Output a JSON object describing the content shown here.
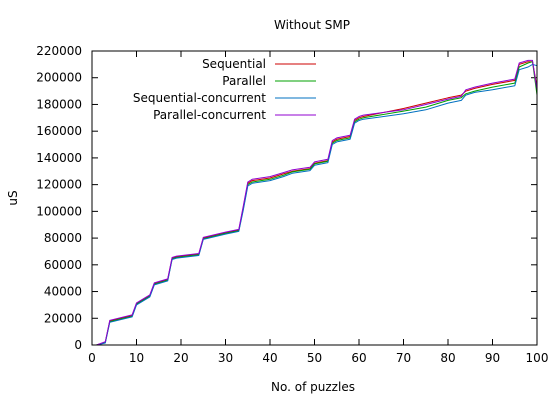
{
  "chart_data": {
    "type": "line",
    "title": "Without SMP",
    "xlabel": "No. of puzzles",
    "ylabel": "uS",
    "xlim": [
      0,
      100
    ],
    "ylim": [
      0,
      220000
    ],
    "xticks": [
      0,
      10,
      20,
      30,
      40,
      50,
      60,
      70,
      80,
      90,
      100
    ],
    "yticks": [
      0,
      20000,
      40000,
      60000,
      80000,
      100000,
      120000,
      140000,
      160000,
      180000,
      200000,
      220000
    ],
    "grid": false,
    "legend": "top-left",
    "series": [
      {
        "name": "Sequential",
        "color": "#cc0000",
        "x": [
          1,
          3,
          4,
          9,
          10,
          12,
          13,
          14,
          17,
          18,
          19,
          24,
          25,
          30,
          33,
          34,
          35,
          36,
          40,
          43,
          45,
          49,
          50,
          53,
          54,
          55,
          58,
          59,
          60,
          61,
          70,
          75,
          80,
          83,
          84,
          86,
          90,
          95,
          96,
          98,
          99,
          100
        ],
        "y": [
          0,
          2000,
          18000,
          22000,
          31000,
          35000,
          37000,
          46000,
          49000,
          65000,
          66000,
          68000,
          80000,
          84000,
          86000,
          103000,
          121000,
          123000,
          125000,
          128000,
          130000,
          132000,
          136000,
          138000,
          152000,
          154000,
          156000,
          168000,
          170000,
          171000,
          177000,
          181000,
          185000,
          187000,
          190000,
          192000,
          195000,
          198000,
          210000,
          212000,
          212000,
          193000
        ]
      },
      {
        "name": "Parallel",
        "color": "#00a000",
        "x": [
          1,
          3,
          4,
          9,
          10,
          12,
          13,
          14,
          17,
          18,
          19,
          24,
          25,
          30,
          33,
          34,
          35,
          36,
          40,
          43,
          45,
          49,
          50,
          53,
          54,
          55,
          58,
          59,
          60,
          61,
          70,
          75,
          80,
          83,
          84,
          86,
          90,
          95,
          96,
          98,
          99,
          100
        ],
        "y": [
          0,
          2000,
          17500,
          21500,
          30500,
          34500,
          36500,
          45500,
          48500,
          64500,
          65500,
          67500,
          79500,
          83500,
          85500,
          102000,
          120000,
          122000,
          124000,
          127000,
          129500,
          131500,
          135500,
          137500,
          151000,
          153000,
          155000,
          167000,
          169000,
          170000,
          175000,
          178000,
          183000,
          185000,
          188000,
          190000,
          193000,
          196000,
          208000,
          211000,
          212000,
          187000
        ]
      },
      {
        "name": "Sequential-concurrent",
        "color": "#0070c0",
        "x": [
          1,
          3,
          4,
          9,
          10,
          12,
          13,
          14,
          17,
          18,
          19,
          24,
          25,
          30,
          33,
          34,
          35,
          36,
          40,
          43,
          45,
          49,
          50,
          53,
          54,
          55,
          58,
          59,
          60,
          61,
          70,
          75,
          80,
          83,
          84,
          86,
          90,
          95,
          96,
          98,
          99,
          100
        ],
        "y": [
          0,
          1500,
          17000,
          21000,
          30000,
          34000,
          36000,
          45000,
          48000,
          64000,
          65000,
          67000,
          79000,
          83000,
          85000,
          101000,
          119000,
          121000,
          123000,
          126000,
          128500,
          130500,
          134500,
          136500,
          150000,
          152000,
          154000,
          166000,
          168000,
          169000,
          173000,
          176000,
          181000,
          183000,
          187000,
          189000,
          191000,
          194000,
          206000,
          208000,
          210000,
          209000
        ]
      },
      {
        "name": "Parallel-concurrent",
        "color": "#9000d0",
        "x": [
          1,
          3,
          4,
          9,
          10,
          12,
          13,
          14,
          17,
          18,
          19,
          24,
          25,
          30,
          33,
          34,
          35,
          36,
          40,
          43,
          45,
          49,
          50,
          53,
          54,
          55,
          58,
          59,
          60,
          61,
          70,
          75,
          80,
          83,
          84,
          86,
          90,
          95,
          96,
          98,
          99,
          100
        ],
        "y": [
          0,
          2500,
          18500,
          22500,
          31500,
          35500,
          37500,
          46500,
          49500,
          65500,
          66500,
          68500,
          80500,
          84500,
          86500,
          104000,
          122000,
          124000,
          126000,
          129000,
          131000,
          133000,
          137000,
          139000,
          153000,
          155000,
          157000,
          169000,
          171000,
          172000,
          176000,
          180000,
          184000,
          186000,
          191000,
          193000,
          196000,
          199000,
          211000,
          213000,
          213000,
          191000
        ]
      }
    ]
  }
}
